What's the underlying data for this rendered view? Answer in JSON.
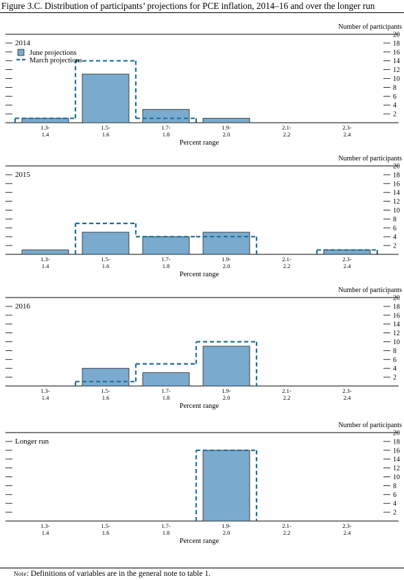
{
  "title": "Figure 3.C. Distribution of participants’ projections for PCE inflation, 2014–16 and over the longer run",
  "note": {
    "prefix": "Note",
    "text": ": Definitions of variables are in the general note to table 1."
  },
  "colors": {
    "june_fill": "#7aabcf",
    "march_line": "#1f6f96",
    "axis": "#000000"
  },
  "chart_data": [
    {
      "type": "bar",
      "title": "2014",
      "xlabel": "Percent range",
      "ylabel": "Number of participants",
      "categories": [
        [
          "1.3-",
          "1.4"
        ],
        [
          "1.5-",
          "1.6"
        ],
        [
          "1.7-",
          "1.8"
        ],
        [
          "1.9-",
          "2.0"
        ],
        [
          "2.1-",
          "2.2"
        ],
        [
          "2.3-",
          "2.4"
        ]
      ],
      "ylim": [
        0,
        20
      ],
      "yticks": [
        2,
        4,
        6,
        8,
        10,
        12,
        14,
        16,
        18,
        20
      ],
      "legend": [
        "June projections",
        "March projections"
      ],
      "series": [
        {
          "name": "June projections",
          "style": "bars",
          "values": [
            1,
            11,
            3,
            1,
            0,
            0
          ]
        },
        {
          "name": "March projections",
          "style": "dashed-step",
          "values": [
            1,
            14,
            1,
            0,
            0,
            0
          ]
        }
      ]
    },
    {
      "type": "bar",
      "title": "2015",
      "xlabel": "Percent range",
      "ylabel": "Number of participants",
      "categories": [
        [
          "1.3-",
          "1.4"
        ],
        [
          "1.5-",
          "1.6"
        ],
        [
          "1.7-",
          "1.8"
        ],
        [
          "1.9-",
          "2.0"
        ],
        [
          "2.1-",
          "2.2"
        ],
        [
          "2.3-",
          "2.4"
        ]
      ],
      "ylim": [
        0,
        20
      ],
      "yticks": [
        2,
        4,
        6,
        8,
        10,
        12,
        14,
        16,
        18,
        20
      ],
      "series": [
        {
          "name": "June projections",
          "style": "bars",
          "values": [
            1,
            5,
            4,
            5,
            0,
            1
          ]
        },
        {
          "name": "March projections",
          "style": "dashed-step",
          "values": [
            0,
            7,
            4,
            4,
            0,
            1
          ]
        }
      ]
    },
    {
      "type": "bar",
      "title": "2016",
      "xlabel": "Percent range",
      "ylabel": "Number of participants",
      "categories": [
        [
          "1.3-",
          "1.4"
        ],
        [
          "1.5-",
          "1.6"
        ],
        [
          "1.7-",
          "1.8"
        ],
        [
          "1.9-",
          "2.0"
        ],
        [
          "2.1-",
          "2.2"
        ],
        [
          "2.3-",
          "2.4"
        ]
      ],
      "ylim": [
        0,
        20
      ],
      "yticks": [
        2,
        4,
        6,
        8,
        10,
        12,
        14,
        16,
        18,
        20
      ],
      "series": [
        {
          "name": "June projections",
          "style": "bars",
          "values": [
            0,
            4,
            3,
            9,
            0,
            0
          ]
        },
        {
          "name": "March projections",
          "style": "dashed-step",
          "values": [
            0,
            1,
            5,
            10,
            0,
            0
          ]
        }
      ]
    },
    {
      "type": "bar",
      "title": "Longer run",
      "xlabel": "Percent range",
      "ylabel": "Number of participants",
      "categories": [
        [
          "1.3-",
          "1.4"
        ],
        [
          "1.5-",
          "1.6"
        ],
        [
          "1.7-",
          "1.8"
        ],
        [
          "1.9-",
          "2.0"
        ],
        [
          "2.1-",
          "2.2"
        ],
        [
          "2.3-",
          "2.4"
        ]
      ],
      "ylim": [
        0,
        20
      ],
      "yticks": [
        2,
        4,
        6,
        8,
        10,
        12,
        14,
        16,
        18,
        20
      ],
      "series": [
        {
          "name": "June projections",
          "style": "bars",
          "values": [
            0,
            0,
            0,
            16,
            0,
            0
          ]
        },
        {
          "name": "March projections",
          "style": "dashed-step",
          "values": [
            0,
            0,
            0,
            16,
            0,
            0
          ]
        }
      ]
    }
  ]
}
